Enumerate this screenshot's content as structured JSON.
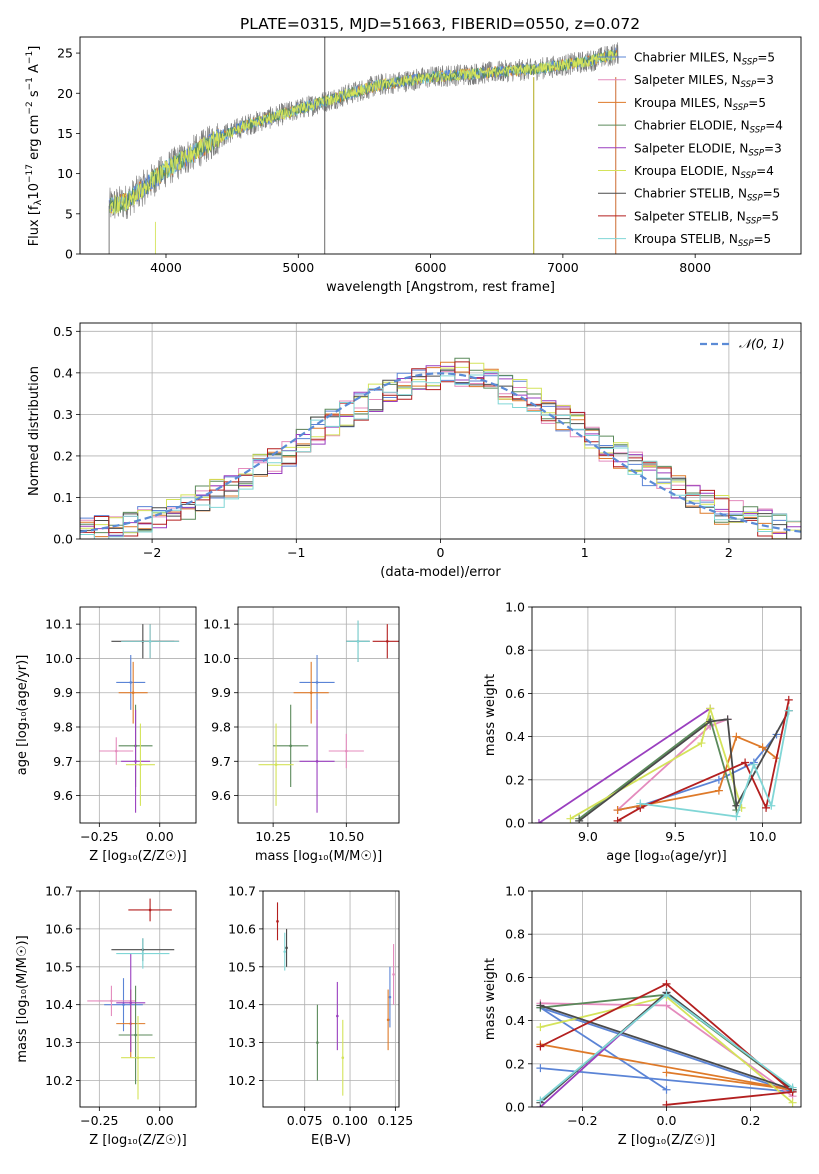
{
  "figure_title": "PLATE=0315, MJD=51663, FIBERID=0550, z=0.072",
  "colors": {
    "chabrier_miles": "#5b84d6",
    "salpeter_miles": "#e48bbd",
    "kroupa_miles": "#de7a2a",
    "chabrier_elodie": "#5b8a5b",
    "salpeter_elodie": "#9a3fbf",
    "kroupa_elodie": "#d4e35a",
    "chabrier_stelib": "#4a4a4a",
    "salpeter_stelib": "#b31f1f",
    "kroupa_stelib": "#80d6d6",
    "gaussian": "#5b8bd6"
  },
  "chart_data": [
    {
      "id": "spectrum",
      "type": "line",
      "title": "PLATE=0315, MJD=51663, FIBERID=0550, z=0.072",
      "xlabel": "wavelength [Angstrom, rest frame]",
      "ylabel": "Flux [f_λ 10^-17 erg cm^-2 s^-1 A^-1]",
      "xlim": [
        3350,
        8800
      ],
      "ylim": [
        0,
        27
      ],
      "xticks": [
        "4000",
        "5000",
        "6000",
        "7000",
        "8000"
      ],
      "yticks": [
        "0",
        "5",
        "10",
        "15",
        "20",
        "25"
      ],
      "legend_position": "top-right",
      "data_trend": {
        "x": [
          3570,
          3700,
          3850,
          4000,
          4200,
          4400,
          4600,
          4800,
          5000,
          5200,
          5400,
          5600,
          5800,
          6000,
          6200,
          6400,
          6600,
          6800,
          7000,
          7200,
          7420
        ],
        "y": [
          6,
          6.5,
          8.5,
          10.5,
          12.5,
          14.5,
          16,
          17,
          18,
          19,
          20,
          21,
          21.5,
          22,
          22.3,
          22.5,
          22.8,
          23,
          23.5,
          24,
          25
        ]
      },
      "series": [
        {
          "name": "Chabrier MILES, N_SSP=5"
        },
        {
          "name": "Salpeter MILES, N_SSP=3"
        },
        {
          "name": "Kroupa MILES, N_SSP=5"
        },
        {
          "name": "Chabrier ELODIE, N_SSP=4"
        },
        {
          "name": "Salpeter ELODIE, N_SSP=3"
        },
        {
          "name": "Kroupa ELODIE, N_SSP=4"
        },
        {
          "name": "Chabrier STELIB, N_SSP=5"
        },
        {
          "name": "Salpeter STELIB, N_SSP=5"
        },
        {
          "name": "Kroupa STELIB, N_SSP=5"
        }
      ]
    },
    {
      "id": "residuals",
      "type": "line",
      "xlabel": "(data-model)/error",
      "ylabel": "Normed distribution",
      "xlim": [
        -2.5,
        2.5
      ],
      "ylim": [
        0,
        0.52
      ],
      "xticks": [
        "−2",
        "−1",
        "0",
        "1",
        "2"
      ],
      "yticks": [
        "0.0",
        "0.1",
        "0.2",
        "0.3",
        "0.4",
        "0.5"
      ],
      "grid": true,
      "legend": "𝒩(0, 1)",
      "legend_position": "top-right",
      "bin_edges_start": -2.5,
      "bin_width": 0.1,
      "reference_counts": [
        0.02,
        0.025,
        0.03,
        0.04,
        0.05,
        0.06,
        0.07,
        0.08,
        0.095,
        0.11,
        0.13,
        0.15,
        0.17,
        0.19,
        0.21,
        0.24,
        0.26,
        0.28,
        0.3,
        0.32,
        0.34,
        0.36,
        0.37,
        0.38,
        0.39,
        0.4,
        0.4,
        0.39,
        0.38,
        0.36,
        0.35,
        0.33,
        0.31,
        0.29,
        0.27,
        0.25,
        0.22,
        0.2,
        0.18,
        0.16,
        0.14,
        0.12,
        0.1,
        0.085,
        0.07,
        0.06,
        0.05,
        0.04,
        0.03,
        0.02
      ]
    },
    {
      "id": "age_vs_Z",
      "type": "scatter",
      "xlabel": "Z [log₁₀(Z/Z☉)]",
      "ylabel": "age [log₁₀(age/yr)]",
      "xlim": [
        -0.33,
        0.15
      ],
      "ylim": [
        9.52,
        10.15
      ],
      "xticks": [
        "−0.25",
        "0.00"
      ],
      "yticks": [
        "9.6",
        "9.7",
        "9.8",
        "9.9",
        "10.0",
        "10.1"
      ],
      "grid": true,
      "points": [
        {
          "x": -0.12,
          "y": 9.93,
          "xerr": 0.06,
          "yerr": 0.08
        },
        {
          "x": -0.18,
          "y": 9.73,
          "xerr": 0.07,
          "yerr": 0.04
        },
        {
          "x": -0.11,
          "y": 9.9,
          "xerr": 0.06,
          "yerr": 0.09
        },
        {
          "x": -0.1,
          "y": 9.745,
          "xerr": 0.07,
          "yerr": 0.12
        },
        {
          "x": -0.1,
          "y": 9.7,
          "xerr": 0.06,
          "yerr": 0.15
        },
        {
          "x": -0.08,
          "y": 9.69,
          "xerr": 0.06,
          "yerr": 0.12
        },
        {
          "x": -0.07,
          "y": 10.05,
          "xerr": 0.13,
          "yerr": 0.05
        },
        {
          "x": -0.04,
          "y": 10.05,
          "xerr": 0.12,
          "yerr": 0.05
        },
        {
          "x": -0.04,
          "y": 10.05,
          "xerr": 0.12,
          "yerr": 0.05
        }
      ]
    },
    {
      "id": "age_vs_mass",
      "type": "scatter",
      "xlabel": "mass [log₁₀(M/M☉)]",
      "ylabel": "",
      "xlim": [
        10.13,
        10.68
      ],
      "ylim": [
        9.52,
        10.15
      ],
      "xticks": [
        "10.25",
        "10.50"
      ],
      "yticks": [
        "9.6",
        "9.7",
        "9.8",
        "9.9",
        "10.0",
        "10.1"
      ],
      "grid": true,
      "points": [
        {
          "x": 10.4,
          "y": 9.93,
          "xerr": 0.06,
          "yerr": 0.08
        },
        {
          "x": 10.5,
          "y": 9.73,
          "xerr": 0.06,
          "yerr": 0.05
        },
        {
          "x": 10.38,
          "y": 9.9,
          "xerr": 0.06,
          "yerr": 0.09
        },
        {
          "x": 10.31,
          "y": 9.745,
          "xerr": 0.06,
          "yerr": 0.12
        },
        {
          "x": 10.4,
          "y": 9.7,
          "xerr": 0.06,
          "yerr": 0.15
        },
        {
          "x": 10.26,
          "y": 9.69,
          "xerr": 0.06,
          "yerr": 0.12
        },
        {
          "x": 10.54,
          "y": 10.05,
          "xerr": 0.04,
          "yerr": 0.06
        },
        {
          "x": 10.64,
          "y": 10.05,
          "xerr": 0.05,
          "yerr": 0.05
        },
        {
          "x": 10.54,
          "y": 10.05,
          "xerr": 0.04,
          "yerr": 0.06
        }
      ]
    },
    {
      "id": "weight_vs_age",
      "type": "line",
      "xlabel": "age [log₁₀(age/yr)]",
      "ylabel": "mass weight",
      "xlim": [
        8.68,
        10.22
      ],
      "ylim": [
        0,
        1
      ],
      "xticks": [
        "9.0",
        "9.5",
        "10.0"
      ],
      "yticks": [
        "0.0",
        "0.2",
        "0.4",
        "0.6",
        "0.8",
        "1.0"
      ],
      "grid": true,
      "series": [
        {
          "x": [
            9.17,
            9.3,
            9.75,
            9.95,
            10.08
          ],
          "y": [
            0.06,
            0.08,
            0.2,
            0.28,
            0.41
          ]
        },
        {
          "x": [
            9.17,
            9.7,
            9.8,
            9.7
          ],
          "y": [
            0.06,
            0.45,
            0.48,
            0.45
          ]
        },
        {
          "x": [
            9.17,
            9.75,
            9.85,
            10.0,
            10.08
          ],
          "y": [
            0.06,
            0.15,
            0.4,
            0.35,
            0.3
          ]
        },
        {
          "x": [
            8.95,
            9.7,
            9.85
          ],
          "y": [
            0.02,
            0.48,
            0.06
          ]
        },
        {
          "x": [
            8.72,
            9.7
          ],
          "y": [
            0.0,
            0.53
          ]
        },
        {
          "x": [
            8.9,
            9.65,
            9.7,
            9.88
          ],
          "y": [
            0.02,
            0.37,
            0.53,
            0.07
          ]
        },
        {
          "x": [
            8.95,
            9.7,
            9.8,
            9.85,
            10.15
          ],
          "y": [
            0.01,
            0.47,
            0.48,
            0.08,
            0.52
          ]
        },
        {
          "x": [
            9.17,
            9.3,
            9.9,
            10.02,
            10.15
          ],
          "y": [
            0.01,
            0.07,
            0.28,
            0.07,
            0.57
          ]
        },
        {
          "x": [
            9.3,
            9.85,
            9.95,
            10.05,
            10.15
          ],
          "y": [
            0.09,
            0.03,
            0.27,
            0.08,
            0.52
          ]
        }
      ]
    },
    {
      "id": "mass_vs_Z",
      "type": "scatter",
      "xlabel": "Z [log₁₀(Z/Z☉)]",
      "ylabel": "mass [log₁₀(M/M☉)]",
      "xlim": [
        -0.33,
        0.15
      ],
      "ylim": [
        10.13,
        10.7
      ],
      "xticks": [
        "−0.25",
        "0.00"
      ],
      "yticks": [
        "10.2",
        "10.3",
        "10.4",
        "10.5",
        "10.6",
        "10.7"
      ],
      "grid": true,
      "points": [
        {
          "x": -0.15,
          "y": 10.4,
          "xerr": 0.08,
          "yerr": 0.07
        },
        {
          "x": -0.2,
          "y": 10.41,
          "xerr": 0.1,
          "yerr": 0.04
        },
        {
          "x": -0.12,
          "y": 10.35,
          "xerr": 0.06,
          "yerr": 0.09
        },
        {
          "x": -0.1,
          "y": 10.32,
          "xerr": 0.07,
          "yerr": 0.13
        },
        {
          "x": -0.12,
          "y": 10.405,
          "xerr": 0.06,
          "yerr": 0.13
        },
        {
          "x": -0.09,
          "y": 10.26,
          "xerr": 0.07,
          "yerr": 0.11
        },
        {
          "x": -0.07,
          "y": 10.545,
          "xerr": 0.13,
          "yerr": 0.03
        },
        {
          "x": -0.04,
          "y": 10.65,
          "xerr": 0.09,
          "yerr": 0.03
        },
        {
          "x": -0.07,
          "y": 10.535,
          "xerr": 0.11,
          "yerr": 0.04
        }
      ]
    },
    {
      "id": "mass_vs_EBV",
      "type": "scatter",
      "xlabel": "E(B-V)",
      "ylabel": "",
      "xlim": [
        0.052,
        0.127
      ],
      "ylim": [
        10.13,
        10.7
      ],
      "xticks": [
        "0.075",
        "0.100",
        "0.125"
      ],
      "yticks": [
        "10.2",
        "10.3",
        "10.4",
        "10.5",
        "10.6",
        "10.7"
      ],
      "grid": true,
      "points": [
        {
          "x": 0.122,
          "y": 10.42,
          "yerr": 0.08
        },
        {
          "x": 0.124,
          "y": 10.48,
          "yerr": 0.08
        },
        {
          "x": 0.121,
          "y": 10.36,
          "yerr": 0.08
        },
        {
          "x": 0.082,
          "y": 10.3,
          "yerr": 0.1
        },
        {
          "x": 0.093,
          "y": 10.37,
          "yerr": 0.09
        },
        {
          "x": 0.096,
          "y": 10.26,
          "yerr": 0.1
        },
        {
          "x": 0.065,
          "y": 10.55,
          "yerr": 0.05
        },
        {
          "x": 0.06,
          "y": 10.62,
          "yerr": 0.05
        },
        {
          "x": 0.064,
          "y": 10.54,
          "yerr": 0.05
        }
      ]
    },
    {
      "id": "weight_vs_Z",
      "type": "line",
      "xlabel": "Z [log₁₀(Z/Z☉)]",
      "ylabel": "mass weight",
      "xlim": [
        -0.32,
        0.32
      ],
      "ylim": [
        0,
        1
      ],
      "xticks": [
        "−0.2",
        "0.0",
        "0.2"
      ],
      "yticks": [
        "0.0",
        "0.2",
        "0.4",
        "0.6",
        "0.8",
        "1.0"
      ],
      "grid": true,
      "series": [
        {
          "x": [
            -0.3,
            0.3,
            -0.3,
            0.0
          ],
          "y": [
            0.18,
            0.07,
            0.46,
            0.08
          ]
        },
        {
          "x": [
            -0.3,
            0.0,
            0.3
          ],
          "y": [
            0.48,
            0.47,
            0.05
          ]
        },
        {
          "x": [
            -0.3,
            0.3,
            0.0
          ],
          "y": [
            0.29,
            0.08,
            0.16
          ]
        },
        {
          "x": [
            -0.3,
            0.0,
            0.3
          ],
          "y": [
            0.46,
            0.52,
            0.08
          ]
        },
        {
          "x": [
            -0.3,
            0.0
          ],
          "y": [
            0.0,
            0.53
          ]
        },
        {
          "x": [
            -0.3,
            0.0,
            0.3
          ],
          "y": [
            0.37,
            0.51,
            0.02
          ]
        },
        {
          "x": [
            -0.3,
            0.0,
            0.3,
            -0.3
          ],
          "y": [
            0.02,
            0.53,
            0.08,
            0.47
          ]
        },
        {
          "x": [
            -0.3,
            0.0,
            0.3,
            0.0
          ],
          "y": [
            0.28,
            0.57,
            0.07,
            0.01
          ]
        },
        {
          "x": [
            -0.3,
            0.0,
            0.3
          ],
          "y": [
            0.03,
            0.52,
            0.09
          ]
        }
      ]
    }
  ]
}
